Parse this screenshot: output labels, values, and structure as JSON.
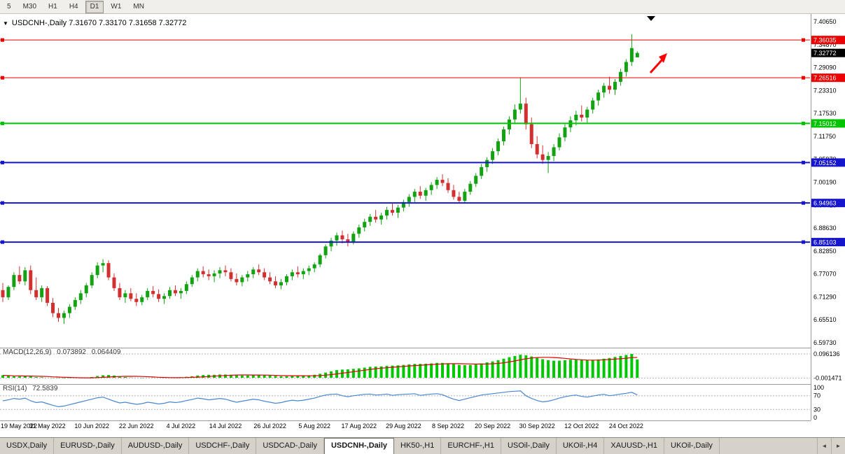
{
  "toolbar": {
    "timeframes": [
      {
        "label": "5",
        "active": false
      },
      {
        "label": "M30",
        "active": false
      },
      {
        "label": "H1",
        "active": false
      },
      {
        "label": "H4",
        "active": false
      },
      {
        "label": "D1",
        "active": true
      },
      {
        "label": "W1",
        "active": false
      },
      {
        "label": "MN",
        "active": false
      }
    ]
  },
  "chart_header": {
    "marker_icon": "▼",
    "title": "USDCNH-,Daily 7.31670 7.33170 7.31658 7.32772"
  },
  "current_price": {
    "label": "7.32772",
    "value": 7.32772,
    "bg": "#000000",
    "text_color": "#ffffff"
  },
  "levels": [
    {
      "label": "7.36035",
      "value": 7.36035,
      "color": "#ee0000",
      "width": 1
    },
    {
      "label": "7.26516",
      "value": 7.26516,
      "color": "#ee0000",
      "width": 1
    },
    {
      "label": "7.15012",
      "value": 7.15012,
      "color": "#00c400",
      "width": 2
    },
    {
      "label": "7.05152",
      "value": 7.05152,
      "color": "#1515cd",
      "width": 2
    },
    {
      "label": "6.94963",
      "value": 6.94963,
      "color": "#1515cd",
      "width": 2
    },
    {
      "label": "6.85103",
      "value": 6.85103,
      "color": "#1515cd",
      "width": 2
    }
  ],
  "annotations": {
    "up_arrow_color": "#ff0000",
    "top_marker": "▼"
  },
  "chart_data": {
    "type": "candlestick",
    "symbol": "USDCNH-",
    "timeframe": "Daily",
    "open": "7.31670",
    "high": "7.33170",
    "low": "7.31658",
    "close": "7.32772",
    "y_axis": {
      "max": 7.4065,
      "min": 6.5973,
      "tick_labels": [
        "7.40650",
        "7.34870",
        "7.29090",
        "7.23310",
        "7.17530",
        "7.11750",
        "7.05970",
        "7.00190",
        "6.94410",
        "6.88630",
        "6.82850",
        "6.77070",
        "6.71290",
        "6.65510",
        "6.59730"
      ]
    },
    "x_labels": [
      "19 May 2022",
      "31 May 2022",
      "10 Jun 2022",
      "22 Jun 2022",
      "4 Jul 2022",
      "14 Jul 2022",
      "26 Jul 2022",
      "5 Aug 2022",
      "17 Aug 2022",
      "29 Aug 2022",
      "8 Sep 2022",
      "20 Sep 2022",
      "30 Sep 2022",
      "12 Oct 2022",
      "24 Oct 2022"
    ],
    "bars_per_label": 8,
    "colors": {
      "up": "#12a212",
      "down": "#d23030"
    },
    "ohlc": [
      [
        6.73,
        6.748,
        6.7,
        6.712
      ],
      [
        6.712,
        6.742,
        6.705,
        6.738
      ],
      [
        6.738,
        6.775,
        6.73,
        6.768
      ],
      [
        6.768,
        6.79,
        6.745,
        6.752
      ],
      [
        6.752,
        6.788,
        6.742,
        6.78
      ],
      [
        6.78,
        6.792,
        6.72,
        6.73
      ],
      [
        6.73,
        6.762,
        6.705,
        6.712
      ],
      [
        6.712,
        6.742,
        6.7,
        6.735
      ],
      [
        6.735,
        6.74,
        6.69,
        6.698
      ],
      [
        6.698,
        6.71,
        6.662,
        6.672
      ],
      [
        6.672,
        6.685,
        6.65,
        6.66
      ],
      [
        6.66,
        6.678,
        6.645,
        6.672
      ],
      [
        6.672,
        6.695,
        6.66,
        6.688
      ],
      [
        6.688,
        6.712,
        6.68,
        6.705
      ],
      [
        6.705,
        6.73,
        6.695,
        6.722
      ],
      [
        6.722,
        6.748,
        6.712,
        6.742
      ],
      [
        6.742,
        6.775,
        6.735,
        6.768
      ],
      [
        6.768,
        6.8,
        6.76,
        6.792
      ],
      [
        6.792,
        6.808,
        6.775,
        6.798
      ],
      [
        6.798,
        6.805,
        6.755,
        6.762
      ],
      [
        6.762,
        6.772,
        6.728,
        6.735
      ],
      [
        6.735,
        6.748,
        6.705,
        6.712
      ],
      [
        6.712,
        6.73,
        6.698,
        6.722
      ],
      [
        6.722,
        6.735,
        6.702,
        6.708
      ],
      [
        6.708,
        6.722,
        6.69,
        6.7
      ],
      [
        6.7,
        6.718,
        6.692,
        6.712
      ],
      [
        6.712,
        6.735,
        6.705,
        6.728
      ],
      [
        6.728,
        6.74,
        6.712,
        6.72
      ],
      [
        6.72,
        6.732,
        6.7,
        6.708
      ],
      [
        6.708,
        6.722,
        6.695,
        6.715
      ],
      [
        6.715,
        6.738,
        6.708,
        6.73
      ],
      [
        6.73,
        6.742,
        6.715,
        6.722
      ],
      [
        6.722,
        6.735,
        6.708,
        6.728
      ],
      [
        6.728,
        6.752,
        6.72,
        6.745
      ],
      [
        6.745,
        6.768,
        6.738,
        6.762
      ],
      [
        6.762,
        6.785,
        6.752,
        6.778
      ],
      [
        6.778,
        6.79,
        6.762,
        6.77
      ],
      [
        6.77,
        6.782,
        6.755,
        6.765
      ],
      [
        6.765,
        6.78,
        6.75,
        6.772
      ],
      [
        6.772,
        6.788,
        6.76,
        6.78
      ],
      [
        6.78,
        6.792,
        6.765,
        6.775
      ],
      [
        6.775,
        6.785,
        6.752,
        6.758
      ],
      [
        6.758,
        6.772,
        6.742,
        6.75
      ],
      [
        6.75,
        6.768,
        6.74,
        6.762
      ],
      [
        6.762,
        6.778,
        6.752,
        6.77
      ],
      [
        6.77,
        6.788,
        6.76,
        6.782
      ],
      [
        6.782,
        6.795,
        6.768,
        6.775
      ],
      [
        6.775,
        6.785,
        6.755,
        6.762
      ],
      [
        6.762,
        6.775,
        6.745,
        6.752
      ],
      [
        6.752,
        6.765,
        6.735,
        6.742
      ],
      [
        6.742,
        6.758,
        6.732,
        6.75
      ],
      [
        6.75,
        6.77,
        6.742,
        6.765
      ],
      [
        6.765,
        6.782,
        6.755,
        6.775
      ],
      [
        6.775,
        6.79,
        6.762,
        6.77
      ],
      [
        6.77,
        6.785,
        6.758,
        6.778
      ],
      [
        6.778,
        6.792,
        6.768,
        6.785
      ],
      [
        6.785,
        6.8,
        6.775,
        6.795
      ],
      [
        6.795,
        6.822,
        6.788,
        6.818
      ],
      [
        6.818,
        6.845,
        6.81,
        6.84
      ],
      [
        6.84,
        6.862,
        6.828,
        6.855
      ],
      [
        6.855,
        6.875,
        6.842,
        6.868
      ],
      [
        6.868,
        6.88,
        6.848,
        6.858
      ],
      [
        6.858,
        6.872,
        6.84,
        6.85
      ],
      [
        6.85,
        6.878,
        6.845,
        6.872
      ],
      [
        6.872,
        6.895,
        6.862,
        6.888
      ],
      [
        6.888,
        6.91,
        6.878,
        6.902
      ],
      [
        6.902,
        6.922,
        6.892,
        6.915
      ],
      [
        6.915,
        6.932,
        6.9,
        6.908
      ],
      [
        6.908,
        6.925,
        6.895,
        6.918
      ],
      [
        6.918,
        6.94,
        6.908,
        6.932
      ],
      [
        6.932,
        6.948,
        6.918,
        6.925
      ],
      [
        6.925,
        6.945,
        6.912,
        6.938
      ],
      [
        6.938,
        6.958,
        6.928,
        6.952
      ],
      [
        6.952,
        6.972,
        6.94,
        6.965
      ],
      [
        6.965,
        6.985,
        6.952,
        6.978
      ],
      [
        6.978,
        6.992,
        6.96,
        6.968
      ],
      [
        6.968,
        6.988,
        6.955,
        6.982
      ],
      [
        6.982,
        7.002,
        6.97,
        6.995
      ],
      [
        6.995,
        7.015,
        6.985,
        7.008
      ],
      [
        7.008,
        7.022,
        6.992,
        7.0
      ],
      [
        7.0,
        7.012,
        6.975,
        6.982
      ],
      [
        6.982,
        6.995,
        6.958,
        6.965
      ],
      [
        6.965,
        6.978,
        6.948,
        6.955
      ],
      [
        6.955,
        6.985,
        6.95,
        6.978
      ],
      [
        6.978,
        7.005,
        6.97,
        6.998
      ],
      [
        6.998,
        7.025,
        6.99,
        7.018
      ],
      [
        7.018,
        7.048,
        7.01,
        7.04
      ],
      [
        7.04,
        7.065,
        7.028,
        7.058
      ],
      [
        7.058,
        7.088,
        7.048,
        7.08
      ],
      [
        7.08,
        7.112,
        7.07,
        7.105
      ],
      [
        7.105,
        7.142,
        7.095,
        7.135
      ],
      [
        7.135,
        7.168,
        7.122,
        7.16
      ],
      [
        7.16,
        7.198,
        7.148,
        7.185
      ],
      [
        7.185,
        7.266,
        7.175,
        7.2
      ],
      [
        7.2,
        7.215,
        7.135,
        7.148
      ],
      [
        7.148,
        7.165,
        7.088,
        7.098
      ],
      [
        7.098,
        7.118,
        7.062,
        7.072
      ],
      [
        7.072,
        7.095,
        7.048,
        7.058
      ],
      [
        7.058,
        7.078,
        7.025,
        7.068
      ],
      [
        7.068,
        7.098,
        7.055,
        7.09
      ],
      [
        7.09,
        7.125,
        7.082,
        7.115
      ],
      [
        7.115,
        7.148,
        7.105,
        7.14
      ],
      [
        7.14,
        7.168,
        7.128,
        7.158
      ],
      [
        7.158,
        7.182,
        7.145,
        7.172
      ],
      [
        7.172,
        7.195,
        7.155,
        7.165
      ],
      [
        7.165,
        7.192,
        7.152,
        7.185
      ],
      [
        7.185,
        7.215,
        7.175,
        7.208
      ],
      [
        7.208,
        7.235,
        7.195,
        7.228
      ],
      [
        7.228,
        7.252,
        7.215,
        7.245
      ],
      [
        7.245,
        7.268,
        7.225,
        7.235
      ],
      [
        7.235,
        7.262,
        7.222,
        7.255
      ],
      [
        7.255,
        7.288,
        7.245,
        7.28
      ],
      [
        7.28,
        7.312,
        7.268,
        7.305
      ],
      [
        7.305,
        7.375,
        7.295,
        7.34
      ],
      [
        7.3167,
        7.3317,
        7.31658,
        7.32772
      ]
    ],
    "indicators": {
      "macd": {
        "name": "MACD(12,26,9)",
        "main_value": "0.073892",
        "signal_value": "0.064409",
        "axis_max_label": "0.096136",
        "axis_min_label": "-0.001471",
        "axis_max": 0.096136,
        "axis_min": -0.001471,
        "histogram_color": "#00c800",
        "signal_color": "#e00000",
        "histogram": [
          0.01,
          0.008,
          0.006,
          0.005,
          0.006,
          0.005,
          0.003,
          0.002,
          0.0,
          -0.001,
          -0.001,
          -0.0015,
          -0.001,
          -0.001,
          0.0,
          0.001,
          0.003,
          0.007,
          0.01,
          0.011,
          0.009,
          0.006,
          0.003,
          0.001,
          0.0,
          -0.001,
          0.0,
          0.001,
          0.0,
          0.0,
          0.001,
          0.001,
          0.002,
          0.004,
          0.006,
          0.009,
          0.011,
          0.012,
          0.012,
          0.013,
          0.013,
          0.012,
          0.01,
          0.009,
          0.009,
          0.01,
          0.011,
          0.01,
          0.009,
          0.007,
          0.006,
          0.006,
          0.007,
          0.008,
          0.009,
          0.01,
          0.012,
          0.016,
          0.021,
          0.026,
          0.031,
          0.033,
          0.034,
          0.036,
          0.038,
          0.041,
          0.044,
          0.045,
          0.046,
          0.048,
          0.049,
          0.05,
          0.052,
          0.054,
          0.056,
          0.056,
          0.057,
          0.058,
          0.06,
          0.06,
          0.058,
          0.055,
          0.052,
          0.051,
          0.052,
          0.054,
          0.058,
          0.062,
          0.066,
          0.071,
          0.077,
          0.083,
          0.088,
          0.093,
          0.091,
          0.086,
          0.08,
          0.075,
          0.071,
          0.069,
          0.069,
          0.071,
          0.073,
          0.074,
          0.072,
          0.071,
          0.072,
          0.074,
          0.077,
          0.08,
          0.084,
          0.088,
          0.092,
          0.0961,
          0.0739
        ]
      },
      "rsi": {
        "name": "RSI(14)",
        "value": "72.5839",
        "line_color": "#4a86d0",
        "axis_labels": [
          "100",
          "70",
          "30",
          "0"
        ],
        "upper_level": 70,
        "lower_level": 30,
        "values": [
          55,
          58,
          62,
          60,
          63,
          55,
          50,
          52,
          47,
          42,
          38,
          40,
          44,
          48,
          52,
          56,
          60,
          64,
          66,
          60,
          54,
          49,
          51,
          48,
          45,
          47,
          51,
          49,
          46,
          48,
          52,
          50,
          52,
          56,
          59,
          63,
          61,
          58,
          60,
          62,
          60,
          55,
          51,
          54,
          57,
          60,
          58,
          54,
          51,
          48,
          50,
          54,
          57,
          55,
          57,
          60,
          63,
          68,
          72,
          74,
          75,
          70,
          67,
          70,
          72,
          74,
          75,
          72,
          73,
          75,
          71,
          73,
          74,
          75,
          76,
          71,
          73,
          75,
          76,
          73,
          66,
          60,
          56,
          60,
          64,
          68,
          72,
          74,
          76,
          78,
          80,
          82,
          83,
          84,
          70,
          62,
          56,
          52,
          54,
          58,
          63,
          67,
          70,
          72,
          68,
          66,
          69,
          72,
          74,
          70,
          72,
          75,
          77,
          80,
          72.6
        ]
      }
    }
  },
  "bottom_tabs": {
    "active_index": 5,
    "scroll_left_icon": "◄",
    "scroll_right_icon": "►",
    "tabs": [
      {
        "label": "USDX,Daily"
      },
      {
        "label": "EURUSD-,Daily"
      },
      {
        "label": "AUDUSD-,Daily"
      },
      {
        "label": "USDCHF-,Daily"
      },
      {
        "label": "USDCAD-,Daily"
      },
      {
        "label": "USDCNH-,Daily"
      },
      {
        "label": "HK50-,H1"
      },
      {
        "label": "EURCHF-,H1"
      },
      {
        "label": "USOil-,Daily"
      },
      {
        "label": "UKOil-,H4"
      },
      {
        "label": "XAUUSD-,H1"
      },
      {
        "label": "UKOil-,Daily"
      }
    ]
  }
}
